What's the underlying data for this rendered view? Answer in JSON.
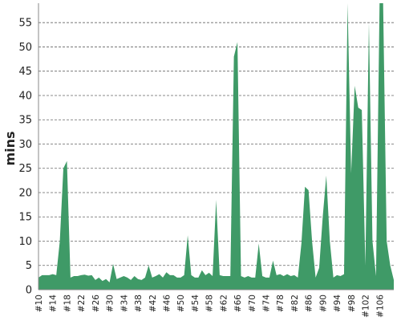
{
  "chart_data": {
    "type": "area",
    "title": "",
    "xlabel": "",
    "ylabel": "mins",
    "ylim": [
      0,
      59
    ],
    "yticks": [
      0,
      5,
      10,
      15,
      20,
      25,
      30,
      35,
      40,
      45,
      50,
      55
    ],
    "xlim": [
      10,
      110
    ],
    "xticks": [
      "#10",
      "#14",
      "#18",
      "#22",
      "#26",
      "#30",
      "#34",
      "#38",
      "#42",
      "#46",
      "#50",
      "#54",
      "#58",
      "#62",
      "#66",
      "#70",
      "#74",
      "#78",
      "#82",
      "#86",
      "#90",
      "#94",
      "#98",
      "#102",
      "#106"
    ],
    "grid": true,
    "legend": "none",
    "color": "#3f9a67",
    "series": [
      {
        "x": [
          10,
          11,
          12,
          13,
          14,
          15,
          16,
          17,
          18,
          19,
          20,
          21,
          22,
          23,
          24,
          25,
          26,
          27,
          28,
          29,
          30,
          31,
          32,
          33,
          34,
          35,
          36,
          37,
          38,
          39,
          40,
          41,
          42,
          43,
          44,
          45,
          46,
          47,
          48,
          49,
          50,
          51,
          52,
          53,
          54,
          55,
          56,
          57,
          58,
          59,
          60,
          61,
          62,
          63,
          64,
          65,
          66,
          67,
          68,
          69,
          70,
          71,
          72,
          73,
          74,
          75,
          76,
          77,
          78,
          79,
          80,
          81,
          82,
          83,
          84,
          85,
          86,
          87,
          88,
          89,
          90,
          91,
          92,
          93,
          94,
          95,
          96,
          97,
          98,
          99,
          100,
          101,
          102,
          103,
          104,
          105,
          106,
          107,
          108,
          109,
          110
        ],
        "values": [
          2.5,
          3,
          3,
          3,
          3.2,
          3,
          10,
          25,
          26.5,
          2.5,
          2.8,
          2.8,
          3,
          3.1,
          2.9,
          3,
          2,
          2.5,
          1.8,
          2.2,
          1.5,
          5.3,
          2.2,
          2.5,
          2.8,
          2.5,
          2,
          2.8,
          2.2,
          2,
          2.5,
          5,
          2.5,
          2.8,
          3.2,
          2.5,
          3.6,
          3,
          3,
          2.5,
          2.5,
          3,
          11.2,
          3,
          2.5,
          2.5,
          4,
          3,
          3.5,
          2.8,
          18.5,
          3,
          2.8,
          2.8,
          2.8,
          48,
          51,
          2.8,
          2.5,
          2.8,
          2.5,
          2.5,
          9.5,
          2.8,
          2.5,
          2.5,
          6,
          3,
          3.2,
          2.8,
          3.2,
          2.8,
          3,
          2.5,
          9.5,
          21.2,
          20.5,
          10,
          2.5,
          4.5,
          15,
          23.5,
          10,
          2.5,
          3,
          2.8,
          3.2,
          59,
          24,
          42,
          37.5,
          37,
          5,
          55,
          10,
          2.8,
          59,
          59,
          10,
          5,
          2
        ]
      }
    ]
  }
}
